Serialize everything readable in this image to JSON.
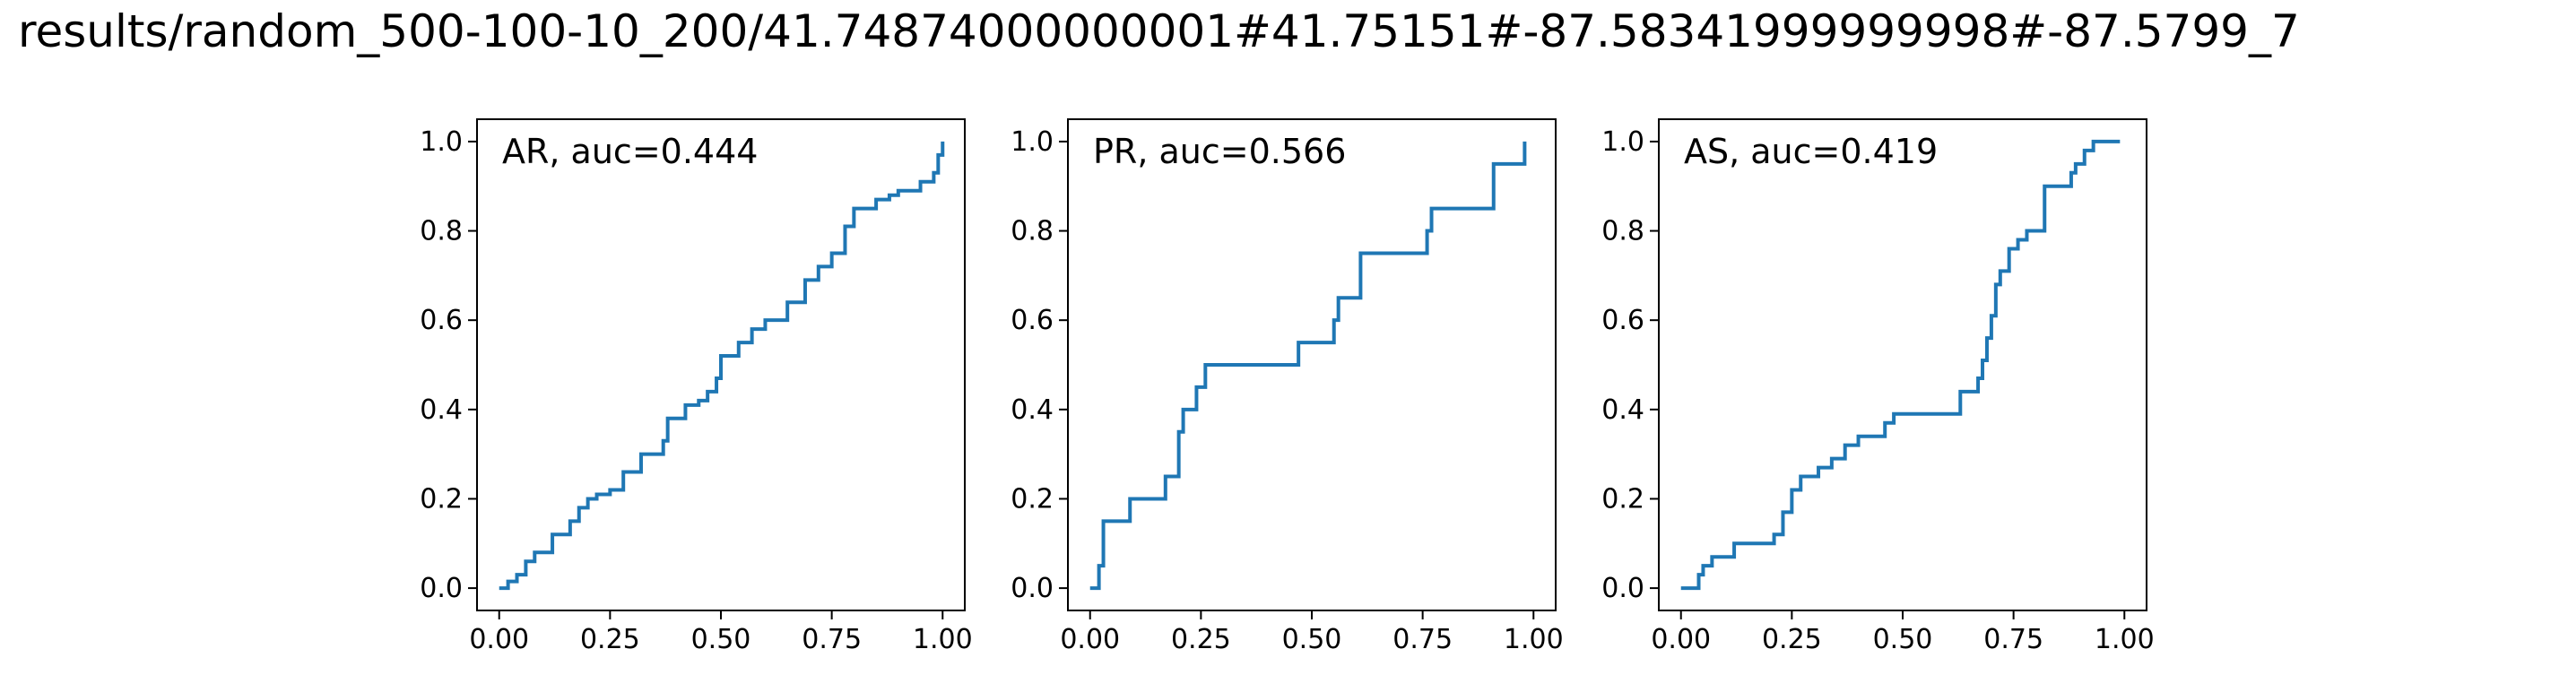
{
  "figure_title": "results/random_500-100-10_200/41.74874000000001#41.75151#-87.58341999999998#-87.5799_7",
  "colors": {
    "line": "#1f77b4",
    "axes": "#000000",
    "background": "#ffffff"
  },
  "chart_data": [
    {
      "type": "line",
      "step": true,
      "title": "AR, auc=0.444",
      "xlabel": "",
      "ylabel": "",
      "xlim": [
        -0.05,
        1.05
      ],
      "ylim": [
        -0.05,
        1.05
      ],
      "xticks": [
        "0.00",
        "0.25",
        "0.50",
        "0.75",
        "1.00"
      ],
      "yticks": [
        "0.0",
        "0.2",
        "0.4",
        "0.6",
        "0.8",
        "1.0"
      ],
      "grid": false,
      "legend": "none",
      "series": [
        {
          "x": [
            0,
            0.02,
            0.02,
            0.04,
            0.04,
            0.06,
            0.06,
            0.08,
            0.08,
            0.12,
            0.12,
            0.16,
            0.16,
            0.18,
            0.18,
            0.2,
            0.2,
            0.22,
            0.22,
            0.25,
            0.25,
            0.28,
            0.28,
            0.32,
            0.32,
            0.37,
            0.37,
            0.38,
            0.38,
            0.42,
            0.42,
            0.45,
            0.45,
            0.47,
            0.47,
            0.49,
            0.49,
            0.5,
            0.5,
            0.54,
            0.54,
            0.57,
            0.57,
            0.6,
            0.6,
            0.65,
            0.65,
            0.69,
            0.69,
            0.72,
            0.72,
            0.75,
            0.75,
            0.78,
            0.78,
            0.8,
            0.8,
            0.85,
            0.85,
            0.88,
            0.88,
            0.9,
            0.9,
            0.95,
            0.95,
            0.98,
            0.98,
            0.99,
            0.99,
            1.0,
            1.0
          ],
          "y": [
            0,
            0,
            0.015,
            0.015,
            0.03,
            0.03,
            0.06,
            0.06,
            0.08,
            0.08,
            0.12,
            0.12,
            0.15,
            0.15,
            0.18,
            0.18,
            0.2,
            0.2,
            0.21,
            0.21,
            0.22,
            0.22,
            0.26,
            0.26,
            0.3,
            0.3,
            0.33,
            0.33,
            0.38,
            0.38,
            0.41,
            0.41,
            0.42,
            0.42,
            0.44,
            0.44,
            0.47,
            0.47,
            0.52,
            0.52,
            0.55,
            0.55,
            0.58,
            0.58,
            0.6,
            0.6,
            0.64,
            0.64,
            0.69,
            0.69,
            0.72,
            0.72,
            0.75,
            0.75,
            0.81,
            0.81,
            0.85,
            0.85,
            0.87,
            0.87,
            0.88,
            0.88,
            0.89,
            0.89,
            0.91,
            0.91,
            0.93,
            0.93,
            0.97,
            0.97,
            1.0
          ]
        }
      ]
    },
    {
      "type": "line",
      "step": true,
      "title": "PR, auc=0.566",
      "xlabel": "",
      "ylabel": "",
      "xlim": [
        -0.05,
        1.05
      ],
      "ylim": [
        -0.05,
        1.05
      ],
      "xticks": [
        "0.00",
        "0.25",
        "0.50",
        "0.75",
        "1.00"
      ],
      "yticks": [
        "0.0",
        "0.2",
        "0.4",
        "0.6",
        "0.8",
        "1.0"
      ],
      "grid": false,
      "legend": "none",
      "series": [
        {
          "x": [
            0,
            0.02,
            0.02,
            0.03,
            0.03,
            0.09,
            0.09,
            0.17,
            0.17,
            0.2,
            0.2,
            0.21,
            0.21,
            0.24,
            0.24,
            0.26,
            0.26,
            0.47,
            0.47,
            0.55,
            0.55,
            0.56,
            0.56,
            0.61,
            0.61,
            0.76,
            0.76,
            0.77,
            0.77,
            0.91,
            0.91,
            0.98,
            0.98
          ],
          "y": [
            0,
            0,
            0.05,
            0.05,
            0.15,
            0.15,
            0.2,
            0.2,
            0.25,
            0.25,
            0.35,
            0.35,
            0.4,
            0.4,
            0.45,
            0.45,
            0.5,
            0.5,
            0.55,
            0.55,
            0.6,
            0.6,
            0.65,
            0.65,
            0.75,
            0.75,
            0.8,
            0.8,
            0.85,
            0.85,
            0.95,
            0.95,
            1.0
          ]
        }
      ]
    },
    {
      "type": "line",
      "step": true,
      "title": "AS, auc=0.419",
      "xlabel": "",
      "ylabel": "",
      "xlim": [
        -0.05,
        1.05
      ],
      "ylim": [
        -0.05,
        1.05
      ],
      "xticks": [
        "0.00",
        "0.25",
        "0.50",
        "0.75",
        "1.00"
      ],
      "yticks": [
        "0.0",
        "0.2",
        "0.4",
        "0.6",
        "0.8",
        "1.0"
      ],
      "grid": false,
      "legend": "none",
      "series": [
        {
          "x": [
            0,
            0.04,
            0.04,
            0.05,
            0.05,
            0.07,
            0.07,
            0.12,
            0.12,
            0.21,
            0.21,
            0.23,
            0.23,
            0.25,
            0.25,
            0.27,
            0.27,
            0.31,
            0.31,
            0.34,
            0.34,
            0.37,
            0.37,
            0.4,
            0.4,
            0.46,
            0.46,
            0.48,
            0.48,
            0.63,
            0.63,
            0.67,
            0.67,
            0.68,
            0.68,
            0.69,
            0.69,
            0.7,
            0.7,
            0.71,
            0.71,
            0.72,
            0.72,
            0.74,
            0.74,
            0.76,
            0.76,
            0.78,
            0.78,
            0.82,
            0.82,
            0.88,
            0.88,
            0.89,
            0.89,
            0.91,
            0.91,
            0.93,
            0.93,
            0.96,
            0.96,
            0.98,
            0.98,
            0.99
          ],
          "y": [
            0,
            0,
            0.03,
            0.03,
            0.05,
            0.05,
            0.07,
            0.07,
            0.1,
            0.1,
            0.12,
            0.12,
            0.17,
            0.17,
            0.22,
            0.22,
            0.25,
            0.25,
            0.27,
            0.27,
            0.29,
            0.29,
            0.32,
            0.32,
            0.34,
            0.34,
            0.37,
            0.37,
            0.39,
            0.39,
            0.44,
            0.44,
            0.47,
            0.47,
            0.51,
            0.51,
            0.56,
            0.56,
            0.61,
            0.61,
            0.68,
            0.68,
            0.71,
            0.71,
            0.76,
            0.76,
            0.78,
            0.78,
            0.8,
            0.8,
            0.9,
            0.9,
            0.93,
            0.93,
            0.95,
            0.95,
            0.98,
            0.98,
            1.0,
            1.0,
            1.0,
            1.0,
            1.0,
            1.0
          ]
        }
      ]
    }
  ]
}
